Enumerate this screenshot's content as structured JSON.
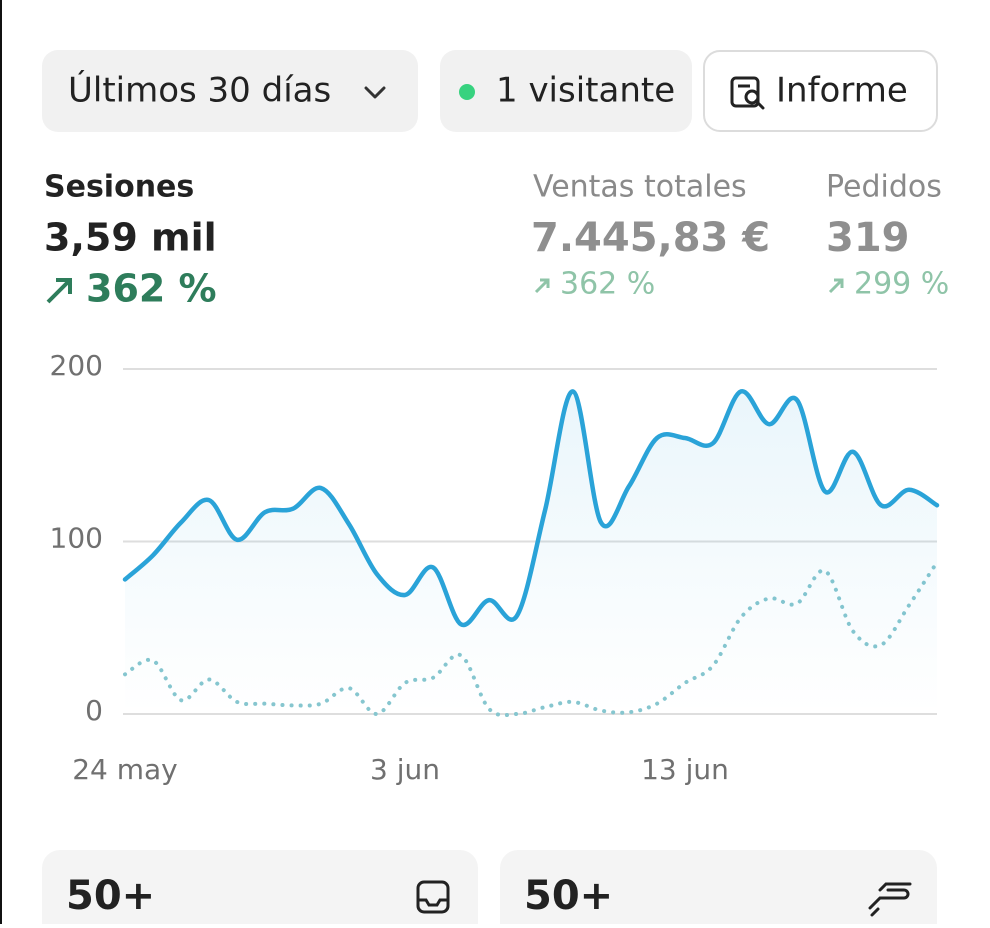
{
  "toolbar": {
    "period": "Últimos 30 días",
    "visitors": "1 visitante",
    "report": "Informe"
  },
  "metrics": [
    {
      "label": "Sesiones",
      "value": "3,59 mil",
      "change": "362 %"
    },
    {
      "label": "Ventas totales",
      "value": "7.445,83 €",
      "change": "362 %"
    },
    {
      "label": "Pedidos",
      "value": "319",
      "change": "299 %"
    }
  ],
  "chart_data": {
    "type": "line",
    "categories": [
      "24 may",
      null,
      null,
      null,
      null,
      null,
      null,
      null,
      null,
      null,
      "3 jun",
      null,
      null,
      null,
      null,
      null,
      null,
      null,
      null,
      null,
      "13 jun",
      null,
      null,
      null,
      null,
      null,
      null,
      null,
      null,
      null
    ],
    "series": [
      {
        "color": "#2aa3d8",
        "style": "solid",
        "area": true,
        "values": [
          78,
          92,
          111,
          124,
          101,
          117,
          119,
          131,
          110,
          81,
          69,
          85,
          52,
          66,
          57,
          118,
          187,
          111,
          132,
          160,
          160,
          157,
          187,
          168,
          182,
          129,
          152,
          121,
          130,
          121
        ]
      },
      {
        "color": "#86c6cf",
        "style": "dotted",
        "area": false,
        "values": [
          23,
          31,
          8,
          20,
          7,
          6,
          5,
          6,
          15,
          0,
          18,
          21,
          34,
          3,
          0,
          4,
          7,
          2,
          1,
          6,
          18,
          28,
          56,
          67,
          64,
          83,
          48,
          40,
          63,
          88
        ]
      }
    ],
    "ylim": [
      0,
      200
    ],
    "yticks": [
      0,
      100,
      200
    ],
    "grid": true
  },
  "cards": [
    {
      "value": "50+"
    },
    {
      "value": "50+"
    }
  ]
}
